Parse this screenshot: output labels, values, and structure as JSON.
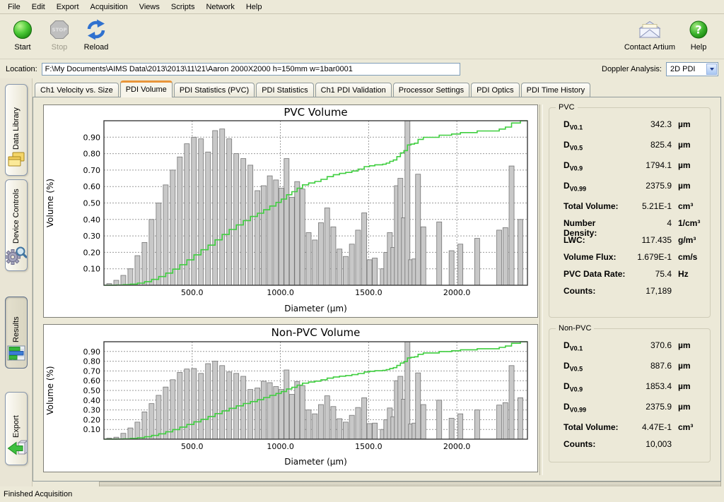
{
  "window": {
    "status": "Finished Acquisition"
  },
  "menu": {
    "items": [
      "File",
      "Edit",
      "Export",
      "Acquisition",
      "Views",
      "Scripts",
      "Network",
      "Help"
    ]
  },
  "toolbar": {
    "left_buttons": [
      {
        "label": "Start",
        "icon": "start-icon",
        "disabled": false
      },
      {
        "label": "Stop",
        "icon": "stop-icon",
        "disabled": true
      },
      {
        "label": "Reload",
        "icon": "reload-icon",
        "disabled": false
      }
    ],
    "right_buttons": [
      {
        "label": "Contact Artium",
        "icon": "envelope-icon",
        "disabled": false
      },
      {
        "label": "Help",
        "icon": "help-icon",
        "disabled": false
      }
    ]
  },
  "location": {
    "label": "Location:",
    "value": "F:\\My Documents\\AIMS Data\\2013\\2013\\11\\21\\Aaron 2000X2000  h=150mm w=1bar0001"
  },
  "doppler": {
    "label": "Doppler Analysis:",
    "value": "2D PDI"
  },
  "sidebar": {
    "tabs": [
      {
        "label": "Data Library",
        "icon": "folders-icon",
        "active": false
      },
      {
        "label": "Device Controls",
        "icon": "gears-icon",
        "active": false
      },
      {
        "label": "Results",
        "icon": "chart-icon",
        "active": true
      },
      {
        "label": "Export",
        "icon": "export-icon",
        "active": false
      }
    ]
  },
  "tabs": {
    "items": [
      "Ch1 Velocity vs. Size",
      "PDI Volume",
      "PDI Statistics (PVC)",
      "PDI Statistics",
      "Ch1 PDI Validation",
      "Processor Settings",
      "PDI Optics",
      "PDI Time History"
    ],
    "active_index": 1
  },
  "stats_panels": [
    {
      "title": "PVC",
      "rows": [
        {
          "base": "D",
          "sub": "V0.1",
          "value": "342.3",
          "unit": "µm"
        },
        {
          "base": "D",
          "sub": "V0.5",
          "value": "825.4",
          "unit": "µm"
        },
        {
          "base": "D",
          "sub": "V0.9",
          "value": "1794.1",
          "unit": "µm"
        },
        {
          "base": "D",
          "sub": "V0.99",
          "value": "2375.9",
          "unit": "µm"
        },
        {
          "label": "Total Volume:",
          "value": "5.21E-1",
          "unit": "cm³"
        },
        {
          "label": "Number Density:",
          "value": "4",
          "unit": "1/cm³"
        },
        {
          "label": "LWC:",
          "value": "117.435",
          "unit": "g/m³"
        },
        {
          "label": "Volume Flux:",
          "value": "1.679E-1",
          "unit": "cm/s"
        },
        {
          "label": "PVC Data Rate:",
          "value": "75.4",
          "unit": "Hz"
        },
        {
          "label": "Counts:",
          "value": "17,189",
          "unit": ""
        }
      ]
    },
    {
      "title": "Non-PVC",
      "rows": [
        {
          "base": "D",
          "sub": "V0.1",
          "value": "370.6",
          "unit": "µm"
        },
        {
          "base": "D",
          "sub": "V0.5",
          "value": "887.6",
          "unit": "µm"
        },
        {
          "base": "D",
          "sub": "V0.9",
          "value": "1853.4",
          "unit": "µm"
        },
        {
          "base": "D",
          "sub": "V0.99",
          "value": "2375.9",
          "unit": "µm"
        },
        {
          "label": "Total Volume:",
          "value": "4.47E-1",
          "unit": "cm³"
        },
        {
          "label": "Counts:",
          "value": "10,003",
          "unit": ""
        }
      ]
    }
  ],
  "chart_data": [
    {
      "type": "bar",
      "title": "PVC Volume",
      "xlabel": "Diameter (µm)",
      "ylabel": "Volume (%)",
      "xlim": [
        0,
        2400
      ],
      "ylim": [
        0,
        1.0
      ],
      "xticks": [
        500,
        1000,
        1500,
        2000
      ],
      "yticks": [
        0.1,
        0.2,
        0.3,
        0.4,
        0.5,
        0.6,
        0.7,
        0.8,
        0.9
      ],
      "grid": true,
      "legend": false,
      "bar_color": "#c8c8c8",
      "bar_edge": "#757575",
      "line_color": "#3fce3f",
      "cumulative_line": true,
      "bin_width": 40,
      "bars": {
        "x": [
          30,
          70,
          110,
          150,
          190,
          230,
          270,
          310,
          350,
          390,
          430,
          470,
          510,
          550,
          590,
          630,
          670,
          710,
          750,
          790,
          830,
          870,
          905,
          940,
          975,
          1005,
          1035,
          1065,
          1095,
          1125,
          1160,
          1195,
          1230,
          1265,
          1300,
          1335,
          1370,
          1405,
          1440,
          1475,
          1505,
          1535,
          1580,
          1600,
          1620,
          1640,
          1660,
          1680,
          1700,
          1720,
          1740,
          1760,
          1780,
          1810,
          1900,
          1970,
          2020,
          2115,
          2240,
          2275,
          2310,
          2360
        ],
        "values": [
          0.01,
          0.03,
          0.06,
          0.1,
          0.18,
          0.26,
          0.4,
          0.5,
          0.61,
          0.7,
          0.78,
          0.86,
          0.9,
          0.89,
          0.81,
          0.94,
          0.95,
          0.89,
          0.8,
          0.77,
          0.73,
          0.575,
          0.605,
          0.665,
          0.64,
          0.59,
          0.77,
          0.535,
          0.63,
          0.585,
          0.32,
          0.275,
          0.38,
          0.47,
          0.355,
          0.22,
          0.175,
          0.25,
          0.335,
          0.44,
          0.155,
          0.165,
          0.1,
          0.2,
          0.32,
          0.23,
          0.605,
          0.65,
          0.41,
          1.0,
          0.155,
          0.16,
          0.675,
          0.355,
          0.385,
          0.21,
          0.25,
          0.285,
          0.335,
          0.35,
          0.725,
          0.4
        ]
      }
    },
    {
      "type": "bar",
      "title": "Non-PVC Volume",
      "xlabel": "Diameter (µm)",
      "ylabel": "Volume (%)",
      "xlim": [
        0,
        2400
      ],
      "ylim": [
        0,
        1.0
      ],
      "xticks": [
        500,
        1000,
        1500,
        2000
      ],
      "yticks": [
        0.1,
        0.2,
        0.3,
        0.4,
        0.5,
        0.6,
        0.7,
        0.8,
        0.9
      ],
      "grid": true,
      "legend": false,
      "bar_color": "#c8c8c8",
      "bar_edge": "#757575",
      "line_color": "#3fce3f",
      "cumulative_line": true,
      "bin_width": 40,
      "bars": {
        "x": [
          30,
          70,
          110,
          150,
          190,
          230,
          270,
          310,
          350,
          390,
          430,
          470,
          510,
          550,
          590,
          630,
          670,
          710,
          750,
          790,
          830,
          870,
          905,
          940,
          975,
          1005,
          1035,
          1065,
          1095,
          1125,
          1160,
          1195,
          1230,
          1265,
          1300,
          1335,
          1370,
          1405,
          1440,
          1475,
          1505,
          1535,
          1580,
          1600,
          1620,
          1640,
          1660,
          1680,
          1700,
          1720,
          1740,
          1760,
          1780,
          1810,
          1900,
          1970,
          2020,
          2115,
          2240,
          2275,
          2310,
          2360
        ],
        "values": [
          0.01,
          0.02,
          0.06,
          0.115,
          0.175,
          0.28,
          0.365,
          0.45,
          0.535,
          0.61,
          0.685,
          0.72,
          0.725,
          0.675,
          0.775,
          0.8,
          0.755,
          0.69,
          0.675,
          0.645,
          0.51,
          0.525,
          0.595,
          0.58,
          0.54,
          0.51,
          0.71,
          0.46,
          0.59,
          0.55,
          0.3,
          0.26,
          0.355,
          0.445,
          0.335,
          0.21,
          0.175,
          0.245,
          0.325,
          0.425,
          0.16,
          0.165,
          0.1,
          0.2,
          0.32,
          0.23,
          0.6,
          0.645,
          0.41,
          1.0,
          0.155,
          0.165,
          0.68,
          0.355,
          0.4,
          0.215,
          0.26,
          0.3,
          0.35,
          0.375,
          0.755,
          0.425
        ]
      }
    }
  ]
}
